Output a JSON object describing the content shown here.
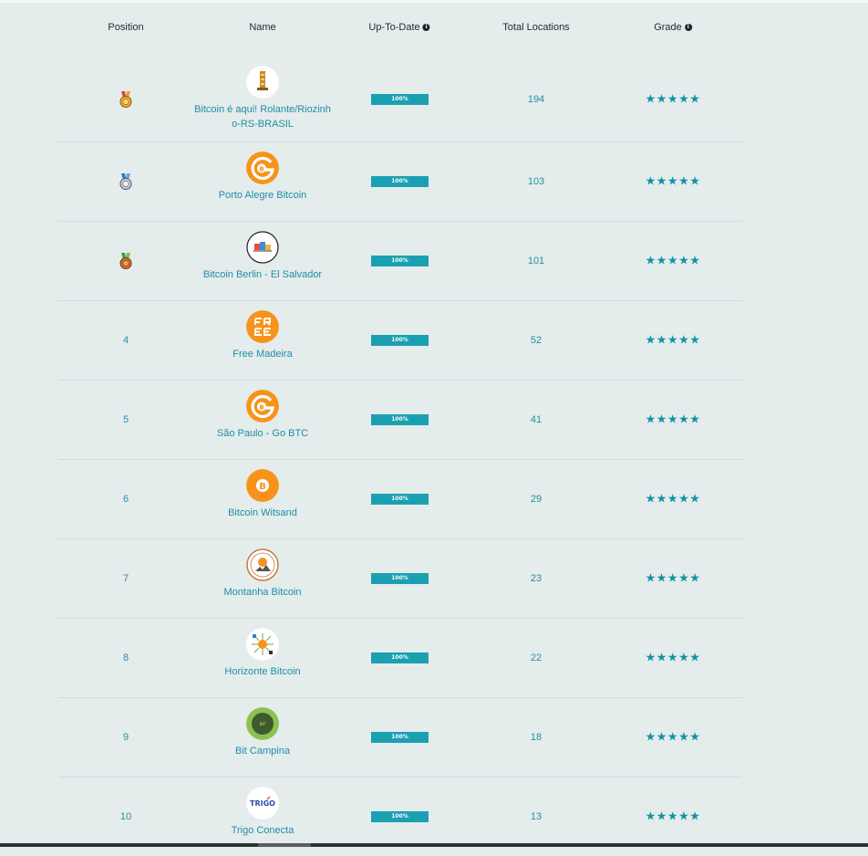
{
  "headers": {
    "position": "Position",
    "name": "Name",
    "up_to_date": "Up-To-Date",
    "total_locations": "Total Locations",
    "grade": "Grade"
  },
  "colors": {
    "accent": "#1ba0b2",
    "link": "#1f8ea6",
    "background": "#e4ecec",
    "star": "#1392a6"
  },
  "rows": [
    {
      "position": "",
      "medal": "gold-medal-icon",
      "name": "Bitcoin é aqui! Rolante/Riozinho-RS-BRASIL",
      "up_to_date": "100%",
      "total_locations": "194",
      "grade": "★★★★★",
      "logo": "bitcoin-e-aqui-logo"
    },
    {
      "position": "",
      "medal": "silver-medal-icon",
      "name": "Porto Alegre Bitcoin",
      "up_to_date": "100%",
      "total_locations": "103",
      "grade": "★★★★★",
      "logo": "porto-alegre-bitcoin-logo"
    },
    {
      "position": "",
      "medal": "bronze-medal-icon",
      "name": "Bitcoin Berlin - El Salvador",
      "up_to_date": "100%",
      "total_locations": "101",
      "grade": "★★★★★",
      "logo": "bitcoin-berlin-logo"
    },
    {
      "position": "4",
      "name": "Free Madeira",
      "up_to_date": "100%",
      "total_locations": "52",
      "grade": "★★★★★",
      "logo": "free-madeira-logo"
    },
    {
      "position": "5",
      "name": "São Paulo - Go BTC",
      "up_to_date": "100%",
      "total_locations": "41",
      "grade": "★★★★★",
      "logo": "sao-paulo-go-btc-logo"
    },
    {
      "position": "6",
      "name": "Bitcoin Witsand",
      "up_to_date": "100%",
      "total_locations": "29",
      "grade": "★★★★★",
      "logo": "bitcoin-witsand-logo"
    },
    {
      "position": "7",
      "name": "Montanha Bitcoin",
      "up_to_date": "100%",
      "total_locations": "23",
      "grade": "★★★★★",
      "logo": "montanha-bitcoin-logo"
    },
    {
      "position": "8",
      "name": "Horizonte Bitcoin",
      "up_to_date": "100%",
      "total_locations": "22",
      "grade": "★★★★★",
      "logo": "horizonte-bitcoin-logo"
    },
    {
      "position": "9",
      "name": "Bit Campina",
      "up_to_date": "100%",
      "total_locations": "18",
      "grade": "★★★★★",
      "logo": "bit-campina-logo"
    },
    {
      "position": "10",
      "name": "Trigo Conecta",
      "up_to_date": "100%",
      "total_locations": "13",
      "grade": "★★★★★",
      "logo": "trigo-conecta-logo",
      "logo_text": "TRIGO"
    }
  ]
}
